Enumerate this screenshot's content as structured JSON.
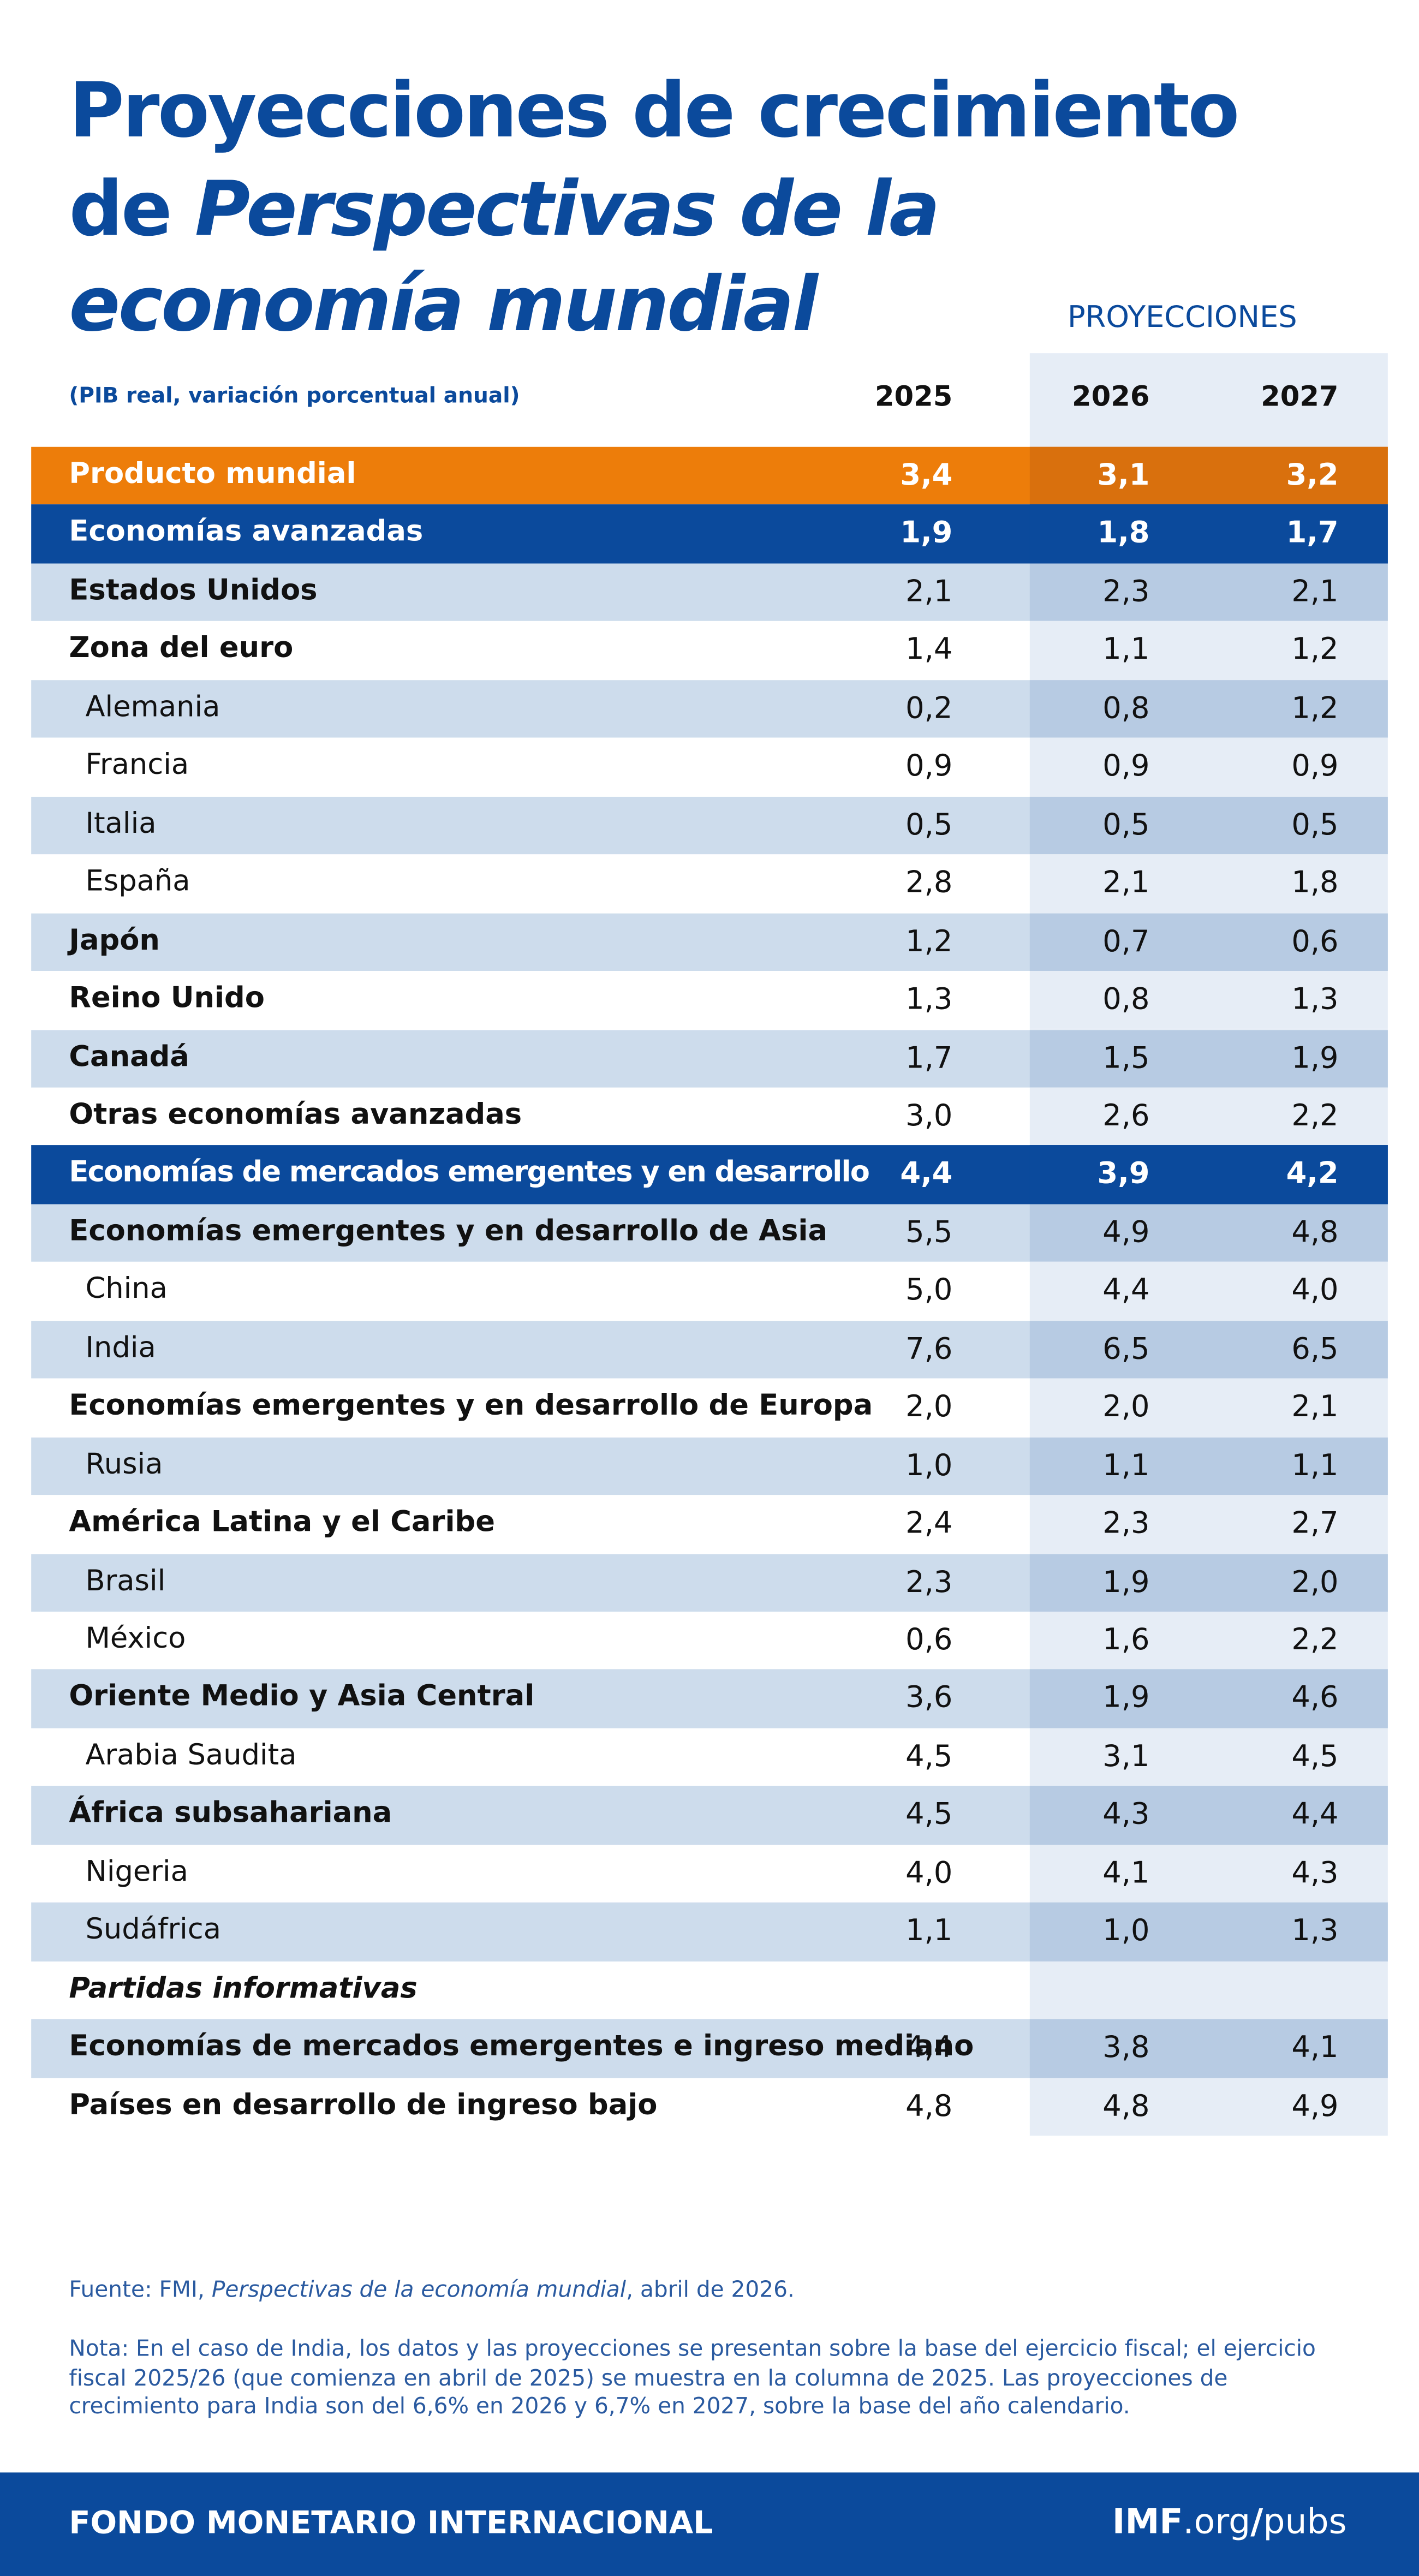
{
  "header": {
    "title_lines": [
      [
        "Proyecciones de crecimiento"
      ],
      [
        "de",
        "Perspectivas de la"
      ],
      [
        "economía mundial"
      ]
    ],
    "projections_label": "PROYECCIONES",
    "subtitle": "(PIB real, variación porcentual anual)",
    "columns": [
      "2025",
      "2026",
      "2027"
    ]
  },
  "table": {
    "rows": [
      {
        "name": "Producto mundial",
        "values": [
          "3,4",
          "3,1",
          "3,2"
        ],
        "band": "orange"
      },
      {
        "name": "Economías avanzadas",
        "values": [
          "1,9",
          "1,8",
          "1,7"
        ],
        "band": "blue"
      },
      {
        "name": "Estados Unidos",
        "values": [
          "2,1",
          "2,3",
          "2,1"
        ]
      },
      {
        "name": "Zona del euro",
        "values": [
          "1,4",
          "1,1",
          "1,2"
        ]
      },
      {
        "name": "Alemania",
        "values": [
          "0,2",
          "0,8",
          "1,2"
        ],
        "indent": true
      },
      {
        "name": "Francia",
        "values": [
          "0,9",
          "0,9",
          "0,9"
        ],
        "indent": true
      },
      {
        "name": "Italia",
        "values": [
          "0,5",
          "0,5",
          "0,5"
        ],
        "indent": true
      },
      {
        "name": "España",
        "values": [
          "2,8",
          "2,1",
          "1,8"
        ],
        "indent": true
      },
      {
        "name": "Japón",
        "values": [
          "1,2",
          "0,7",
          "0,6"
        ]
      },
      {
        "name": "Reino Unido",
        "values": [
          "1,3",
          "0,8",
          "1,3"
        ]
      },
      {
        "name": "Canadá",
        "values": [
          "1,7",
          "1,5",
          "1,9"
        ]
      },
      {
        "name": "Otras economías avanzadas",
        "values": [
          "3,0",
          "2,6",
          "2,2"
        ]
      },
      {
        "name": "Economías de mercados emergentes y en desarrollo",
        "values": [
          "4,4",
          "3,9",
          "4,2"
        ],
        "band": "blue"
      },
      {
        "name": "Economías emergentes y en desarrollo de Asia",
        "values": [
          "5,5",
          "4,9",
          "4,8"
        ]
      },
      {
        "name": "China",
        "values": [
          "5,0",
          "4,4",
          "4,0"
        ],
        "indent": true
      },
      {
        "name": "India",
        "values": [
          "7,6",
          "6,5",
          "6,5"
        ],
        "indent": true
      },
      {
        "name": "Economías emergentes y en desarrollo de Europa",
        "values": [
          "2,0",
          "2,0",
          "2,1"
        ]
      },
      {
        "name": "Rusia",
        "values": [
          "1,0",
          "1,1",
          "1,1"
        ],
        "indent": true
      },
      {
        "name": "América Latina y el Caribe",
        "values": [
          "2,4",
          "2,3",
          "2,7"
        ]
      },
      {
        "name": "Brasil",
        "values": [
          "2,3",
          "1,9",
          "2,0"
        ],
        "indent": true
      },
      {
        "name": "México",
        "values": [
          "0,6",
          "1,6",
          "2,2"
        ],
        "indent": true
      },
      {
        "name": "Oriente Medio y Asia Central",
        "values": [
          "3,6",
          "1,9",
          "4,6"
        ]
      },
      {
        "name": "Arabia Saudita",
        "values": [
          "4,5",
          "3,1",
          "4,5"
        ],
        "indent": true
      },
      {
        "name": "África subsahariana",
        "values": [
          "4,5",
          "4,3",
          "4,4"
        ]
      },
      {
        "name": "Nigeria",
        "values": [
          "4,0",
          "4,1",
          "4,3"
        ],
        "indent": true
      },
      {
        "name": "Sudáfrica",
        "values": [
          "1,1",
          "1,0",
          "1,3"
        ],
        "indent": true
      },
      {
        "name": "Partidas informativas",
        "italic": true
      },
      {
        "name": "Economías de mercados emergentes e ingreso mediano",
        "values": [
          "4,4",
          "3,8",
          "4,1"
        ]
      },
      {
        "name": "Países en desarrollo de ingreso bajo",
        "values": [
          "4,8",
          "4,8",
          "4,9"
        ]
      }
    ]
  },
  "notes": {
    "source": [
      "Fuente: FMI,",
      "Perspectivas de la economía mundial",
      ", abril de 2026."
    ],
    "note": "Nota: En el caso de India, los datos y las proyecciones se presentan sobre la base del ejercicio fiscal; el ejercicio fiscal 2025/26 (que comienza en abril de 2025) se muestra en la columna de 2025. Las proyecciones de crecimiento para India son del 6,6% en 2026 y 6,7% en 2027, sobre la base del año calendario."
  },
  "footer": {
    "organization": "FONDO MONETARIO INTERNACIONAL",
    "url_parts": [
      "IMF",
      ".org",
      "/",
      "pubs"
    ]
  }
}
